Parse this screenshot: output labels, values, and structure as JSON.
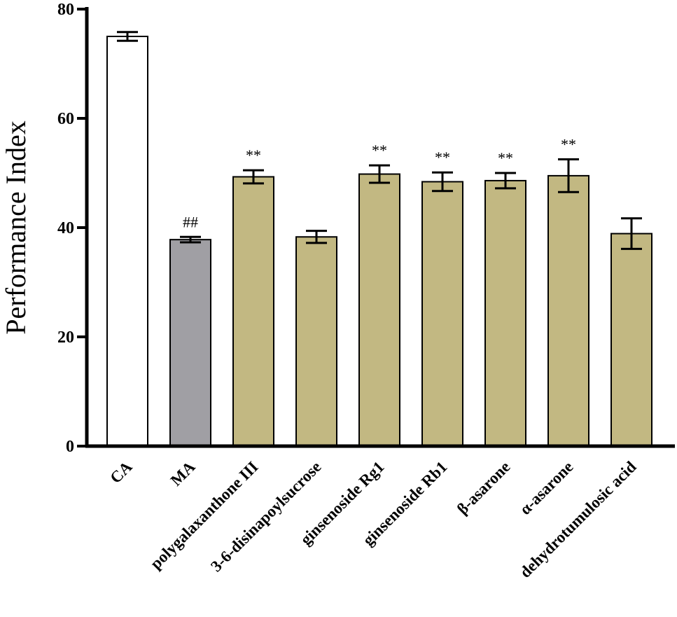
{
  "chart_data": {
    "type": "bar",
    "title": "",
    "xlabel": "",
    "ylabel": "Performance Index",
    "ylim": [
      0,
      80
    ],
    "yticks": [
      0,
      20,
      40,
      60,
      80
    ],
    "grid": false,
    "categories": [
      "CA",
      "MA",
      "polygalaxanthone III",
      "3-6-disinapoylsucrose",
      "ginsenoside Rg1",
      "ginsenoside Rb1",
      "β-asarone",
      "α-asarone",
      "dehydrotumulosic acid"
    ],
    "values": [
      75.0,
      37.8,
      49.3,
      38.3,
      49.8,
      48.4,
      48.6,
      49.5,
      38.9
    ],
    "errors": [
      0.8,
      0.5,
      1.2,
      1.1,
      1.6,
      1.7,
      1.4,
      3.0,
      2.8
    ],
    "annotations": [
      "",
      "##",
      "**",
      "",
      "**",
      "**",
      "**",
      "**",
      ""
    ],
    "colors": [
      "#ffffff",
      "#a09fa4",
      "#c2b882",
      "#c2b882",
      "#c2b882",
      "#c2b882",
      "#c2b882",
      "#c2b882",
      "#c2b882"
    ]
  }
}
